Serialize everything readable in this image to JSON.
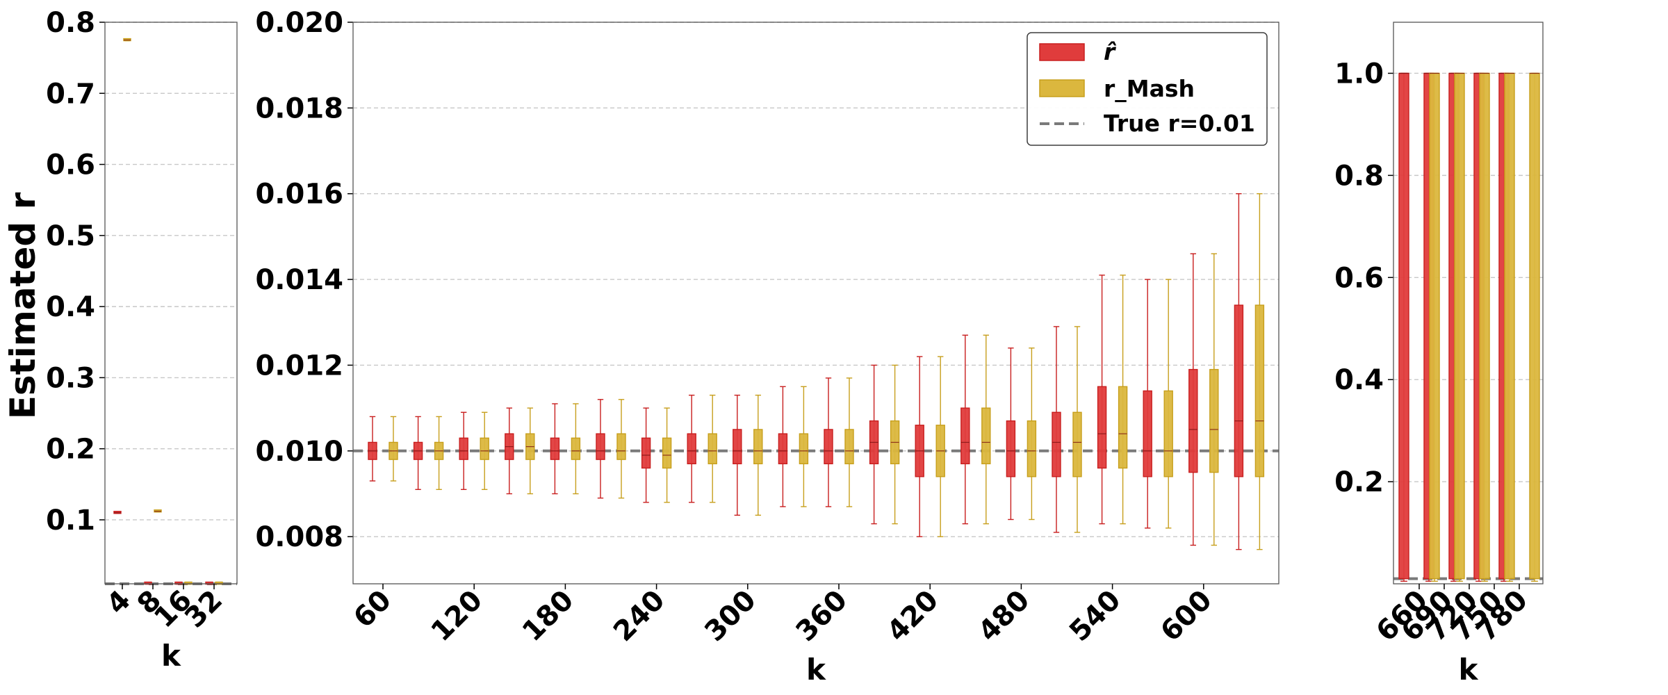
{
  "colors": {
    "r_hat": "#e03c3c",
    "r_hat_edge": "#c81e1e",
    "r_mash": "#dbb73e",
    "r_mash_edge": "#c79f1c",
    "true_line": "#7a7a7a",
    "grid": "#c8c8c8"
  },
  "legend": {
    "r_hat": "r̂",
    "r_mash": "r_Mash",
    "true_r": "True r=0.01",
    "placement": "upper-right of middle panel"
  },
  "chart_data": [
    {
      "type": "box",
      "ylabel": "Estimated r",
      "xlabel": "k",
      "ylim": [
        0.01,
        0.8
      ],
      "yticks": [
        "0.1",
        "0.2",
        "0.3",
        "0.4",
        "0.5",
        "0.6",
        "0.7",
        "0.8"
      ],
      "x": [
        4,
        8,
        16,
        32
      ],
      "xticks": [
        "4",
        "8",
        "16",
        "32"
      ],
      "true_r": 0.01,
      "grid": "y",
      "series": [
        {
          "name": "r̂",
          "points": [
            {
              "k": 4,
              "q1": 0.109,
              "median": 0.11,
              "q3": 0.111,
              "min": 0.109,
              "max": 0.111
            },
            {
              "k": 8,
              "q1": 0.0095,
              "median": 0.01,
              "q3": 0.0105,
              "min": 0.0095,
              "max": 0.0105
            },
            {
              "k": 16,
              "q1": 0.0095,
              "median": 0.01,
              "q3": 0.0105,
              "min": 0.0095,
              "max": 0.0105
            },
            {
              "k": 32,
              "q1": 0.0095,
              "median": 0.01,
              "q3": 0.0105,
              "min": 0.0095,
              "max": 0.0105
            }
          ]
        },
        {
          "name": "r_Mash",
          "points": [
            {
              "k": 4,
              "q1": 0.774,
              "median": 0.775,
              "q3": 0.776,
              "min": 0.774,
              "max": 0.776
            },
            {
              "k": 8,
              "q1": 0.111,
              "median": 0.112,
              "q3": 0.113,
              "min": 0.111,
              "max": 0.113
            },
            {
              "k": 16,
              "q1": 0.0095,
              "median": 0.01,
              "q3": 0.0105,
              "min": 0.0095,
              "max": 0.0105
            },
            {
              "k": 32,
              "q1": 0.0095,
              "median": 0.01,
              "q3": 0.0105,
              "min": 0.0095,
              "max": 0.0105
            }
          ]
        }
      ]
    },
    {
      "type": "box",
      "xlabel": "k",
      "ylim": [
        0.0069,
        0.02
      ],
      "yticks": [
        "0.008",
        "0.010",
        "0.012",
        "0.014",
        "0.016",
        "0.018",
        "0.020"
      ],
      "x": [
        60,
        90,
        120,
        150,
        180,
        210,
        240,
        270,
        300,
        330,
        360,
        390,
        420,
        450,
        480,
        510,
        540,
        570,
        600,
        630
      ],
      "xticks": [
        "60",
        "120",
        "180",
        "240",
        "300",
        "360",
        "420",
        "480",
        "540",
        "600"
      ],
      "true_r": 0.01,
      "grid": "y",
      "series": [
        {
          "name": "r̂",
          "points": [
            {
              "k": 60,
              "q1": 0.0098,
              "median": 0.01,
              "q3": 0.0102,
              "min": 0.0093,
              "max": 0.0108
            },
            {
              "k": 90,
              "q1": 0.0098,
              "median": 0.01,
              "q3": 0.0102,
              "min": 0.0091,
              "max": 0.0108
            },
            {
              "k": 120,
              "q1": 0.0098,
              "median": 0.01,
              "q3": 0.0103,
              "min": 0.0091,
              "max": 0.0109
            },
            {
              "k": 150,
              "q1": 0.0098,
              "median": 0.0101,
              "q3": 0.0104,
              "min": 0.009,
              "max": 0.011
            },
            {
              "k": 180,
              "q1": 0.0098,
              "median": 0.01,
              "q3": 0.0103,
              "min": 0.009,
              "max": 0.0111
            },
            {
              "k": 210,
              "q1": 0.0098,
              "median": 0.01,
              "q3": 0.0104,
              "min": 0.0089,
              "max": 0.0112
            },
            {
              "k": 240,
              "q1": 0.0096,
              "median": 0.0099,
              "q3": 0.0103,
              "min": 0.0088,
              "max": 0.011
            },
            {
              "k": 270,
              "q1": 0.0097,
              "median": 0.01,
              "q3": 0.0104,
              "min": 0.0088,
              "max": 0.0113
            },
            {
              "k": 300,
              "q1": 0.0097,
              "median": 0.01,
              "q3": 0.0105,
              "min": 0.0085,
              "max": 0.0113
            },
            {
              "k": 330,
              "q1": 0.0097,
              "median": 0.01,
              "q3": 0.0104,
              "min": 0.0087,
              "max": 0.0115
            },
            {
              "k": 360,
              "q1": 0.0097,
              "median": 0.01,
              "q3": 0.0105,
              "min": 0.0087,
              "max": 0.0117
            },
            {
              "k": 390,
              "q1": 0.0097,
              "median": 0.0102,
              "q3": 0.0107,
              "min": 0.0083,
              "max": 0.012
            },
            {
              "k": 420,
              "q1": 0.0094,
              "median": 0.01,
              "q3": 0.0106,
              "min": 0.008,
              "max": 0.0122
            },
            {
              "k": 450,
              "q1": 0.0097,
              "median": 0.0102,
              "q3": 0.011,
              "min": 0.0083,
              "max": 0.0127
            },
            {
              "k": 480,
              "q1": 0.0094,
              "median": 0.01,
              "q3": 0.0107,
              "min": 0.0084,
              "max": 0.0124
            },
            {
              "k": 510,
              "q1": 0.0094,
              "median": 0.0102,
              "q3": 0.0109,
              "min": 0.0081,
              "max": 0.0129
            },
            {
              "k": 540,
              "q1": 0.0096,
              "median": 0.0104,
              "q3": 0.0115,
              "min": 0.0083,
              "max": 0.0141
            },
            {
              "k": 570,
              "q1": 0.0094,
              "median": 0.01,
              "q3": 0.0114,
              "min": 0.0082,
              "max": 0.014
            },
            {
              "k": 600,
              "q1": 0.0095,
              "median": 0.0105,
              "q3": 0.0119,
              "min": 0.0078,
              "max": 0.0146
            },
            {
              "k": 630,
              "q1": 0.0094,
              "median": 0.0107,
              "q3": 0.0134,
              "min": 0.0077,
              "max": 0.016
            }
          ]
        },
        {
          "name": "r_Mash",
          "points": [
            {
              "k": 60,
              "q1": 0.0098,
              "median": 0.01,
              "q3": 0.0102,
              "min": 0.0093,
              "max": 0.0108
            },
            {
              "k": 90,
              "q1": 0.0098,
              "median": 0.01,
              "q3": 0.0102,
              "min": 0.0091,
              "max": 0.0108
            },
            {
              "k": 120,
              "q1": 0.0098,
              "median": 0.01,
              "q3": 0.0103,
              "min": 0.0091,
              "max": 0.0109
            },
            {
              "k": 150,
              "q1": 0.0098,
              "median": 0.0101,
              "q3": 0.0104,
              "min": 0.009,
              "max": 0.011
            },
            {
              "k": 180,
              "q1": 0.0098,
              "median": 0.01,
              "q3": 0.0103,
              "min": 0.009,
              "max": 0.0111
            },
            {
              "k": 210,
              "q1": 0.0098,
              "median": 0.01,
              "q3": 0.0104,
              "min": 0.0089,
              "max": 0.0112
            },
            {
              "k": 240,
              "q1": 0.0096,
              "median": 0.0099,
              "q3": 0.0103,
              "min": 0.0088,
              "max": 0.011
            },
            {
              "k": 270,
              "q1": 0.0097,
              "median": 0.01,
              "q3": 0.0104,
              "min": 0.0088,
              "max": 0.0113
            },
            {
              "k": 300,
              "q1": 0.0097,
              "median": 0.01,
              "q3": 0.0105,
              "min": 0.0085,
              "max": 0.0113
            },
            {
              "k": 330,
              "q1": 0.0097,
              "median": 0.01,
              "q3": 0.0104,
              "min": 0.0087,
              "max": 0.0115
            },
            {
              "k": 360,
              "q1": 0.0097,
              "median": 0.01,
              "q3": 0.0105,
              "min": 0.0087,
              "max": 0.0117
            },
            {
              "k": 390,
              "q1": 0.0097,
              "median": 0.0102,
              "q3": 0.0107,
              "min": 0.0083,
              "max": 0.012
            },
            {
              "k": 420,
              "q1": 0.0094,
              "median": 0.01,
              "q3": 0.0106,
              "min": 0.008,
              "max": 0.0122
            },
            {
              "k": 450,
              "q1": 0.0097,
              "median": 0.0102,
              "q3": 0.011,
              "min": 0.0083,
              "max": 0.0127
            },
            {
              "k": 480,
              "q1": 0.0094,
              "median": 0.01,
              "q3": 0.0107,
              "min": 0.0084,
              "max": 0.0124
            },
            {
              "k": 510,
              "q1": 0.0094,
              "median": 0.0102,
              "q3": 0.0109,
              "min": 0.0081,
              "max": 0.0129
            },
            {
              "k": 540,
              "q1": 0.0096,
              "median": 0.0104,
              "q3": 0.0115,
              "min": 0.0083,
              "max": 0.0141
            },
            {
              "k": 570,
              "q1": 0.0094,
              "median": 0.01,
              "q3": 0.0114,
              "min": 0.0082,
              "max": 0.014
            },
            {
              "k": 600,
              "q1": 0.0095,
              "median": 0.0105,
              "q3": 0.0119,
              "min": 0.0078,
              "max": 0.0146
            },
            {
              "k": 630,
              "q1": 0.0094,
              "median": 0.0107,
              "q3": 0.0134,
              "min": 0.0077,
              "max": 0.016
            }
          ]
        }
      ]
    },
    {
      "type": "box",
      "xlabel": "k",
      "ylim": [
        0.0,
        1.1
      ],
      "yticks": [
        "0.2",
        "0.4",
        "0.6",
        "0.8",
        "1.0"
      ],
      "x": [
        660,
        690,
        720,
        750,
        780
      ],
      "xticks": [
        "660",
        "690",
        "720",
        "750",
        "780"
      ],
      "true_r": 0.01,
      "grid": "y",
      "series": [
        {
          "name": "r̂",
          "points": [
            {
              "k": 660,
              "q1": 0.01,
              "median": 1.0,
              "q3": 1.0,
              "min": 0.005,
              "max": 1.0
            },
            {
              "k": 690,
              "q1": 0.01,
              "median": 1.0,
              "q3": 1.0,
              "min": 0.005,
              "max": 1.0
            },
            {
              "k": 720,
              "q1": 0.01,
              "median": 1.0,
              "q3": 1.0,
              "min": 0.005,
              "max": 1.0
            },
            {
              "k": 750,
              "q1": 0.01,
              "median": 1.0,
              "q3": 1.0,
              "min": 0.005,
              "max": 1.0
            },
            {
              "k": 780,
              "q1": 0.01,
              "median": 1.0,
              "q3": 1.0,
              "min": 0.005,
              "max": 1.0
            }
          ]
        },
        {
          "name": "r_Mash",
          "points": [
            {
              "k": 660,
              "q1": 0.01,
              "median": 1.0,
              "q3": 1.0,
              "min": 0.005,
              "max": 1.0
            },
            {
              "k": 690,
              "q1": 0.01,
              "median": 1.0,
              "q3": 1.0,
              "min": 0.005,
              "max": 1.0
            },
            {
              "k": 720,
              "q1": 0.01,
              "median": 1.0,
              "q3": 1.0,
              "min": 0.005,
              "max": 1.0
            },
            {
              "k": 750,
              "q1": 0.01,
              "median": 1.0,
              "q3": 1.0,
              "min": 0.005,
              "max": 1.0
            },
            {
              "k": 780,
              "q1": 0.01,
              "median": 1.0,
              "q3": 1.0,
              "min": 0.005,
              "max": 1.0
            }
          ]
        }
      ]
    }
  ]
}
